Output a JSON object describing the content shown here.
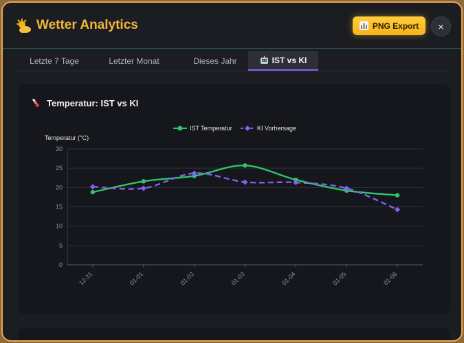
{
  "header": {
    "title": "Wetter Analytics",
    "logo_icon": "sun-behind-cloud-icon",
    "export_label": "PNG Export",
    "export_icon": "bar-chart-icon",
    "close_label": "×"
  },
  "tabs": [
    {
      "label": "Letzte 7 Tage",
      "active": false
    },
    {
      "label": "Letzter Monat",
      "active": false
    },
    {
      "label": "Dieses Jahr",
      "active": false
    },
    {
      "label": "IST vs KI",
      "active": true,
      "icon": "robot-icon"
    }
  ],
  "card": {
    "title": "Temperatur: IST vs KI",
    "icon": "thermometer-icon"
  },
  "chart_data": {
    "type": "line",
    "title": "",
    "xlabel": "",
    "ylabel": "Temperatur (°C)",
    "categories": [
      "12-31",
      "01-01",
      "01-02",
      "01-03",
      "01-04",
      "01-05",
      "01-06"
    ],
    "ylim": [
      0,
      30
    ],
    "yticks": [
      0,
      5,
      10,
      15,
      20,
      25,
      30
    ],
    "grid": true,
    "legend_position": "top-center",
    "series": [
      {
        "name": "IST Temperatur",
        "values": [
          18.8,
          21.6,
          23.0,
          25.7,
          22.0,
          19.2,
          18.0
        ],
        "color": "#2fc56a",
        "style": "solid",
        "marker": "circle"
      },
      {
        "name": "KI Vorhersage",
        "values": [
          20.2,
          19.8,
          23.7,
          21.4,
          21.3,
          19.8,
          14.3
        ],
        "color": "#8c5df5",
        "style": "dashed",
        "marker": "diamond"
      }
    ]
  }
}
